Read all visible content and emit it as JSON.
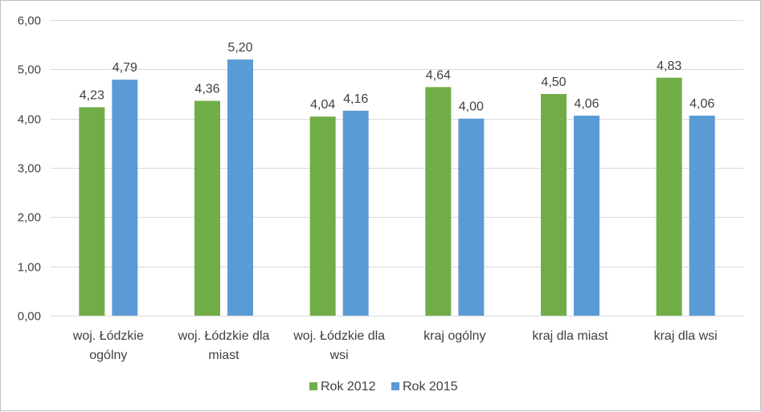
{
  "chart_data": {
    "type": "bar",
    "categories": [
      [
        "woj. Łódzkie",
        "ogólny"
      ],
      [
        "woj. Łódzkie dla",
        "miast"
      ],
      [
        "woj. Łódzkie dla",
        "wsi"
      ],
      [
        "kraj ogólny"
      ],
      [
        "kraj dla miast"
      ],
      [
        "kraj dla wsi"
      ]
    ],
    "series": [
      {
        "name": "Rok 2012",
        "color": "#70ad47",
        "values": [
          4.23,
          4.36,
          4.04,
          4.64,
          4.5,
          4.83
        ],
        "labels": [
          "4,23",
          "4,36",
          "4,04",
          "4,64",
          "4,50",
          "4,83"
        ]
      },
      {
        "name": "Rok 2015",
        "color": "#5b9bd5",
        "values": [
          4.79,
          5.2,
          4.16,
          4.0,
          4.06,
          4.06
        ],
        "labels": [
          "4,79",
          "5,20",
          "4,16",
          "4,00",
          "4,06",
          "4,06"
        ]
      }
    ],
    "ylim": [
      0,
      6
    ],
    "yticks": [
      0,
      1,
      2,
      3,
      4,
      5,
      6
    ],
    "ytick_labels": [
      "0,00",
      "1,00",
      "2,00",
      "3,00",
      "4,00",
      "5,00",
      "6,00"
    ],
    "grid": true,
    "legend": "bottom-center",
    "gridline_color": "#d9d9d9"
  }
}
